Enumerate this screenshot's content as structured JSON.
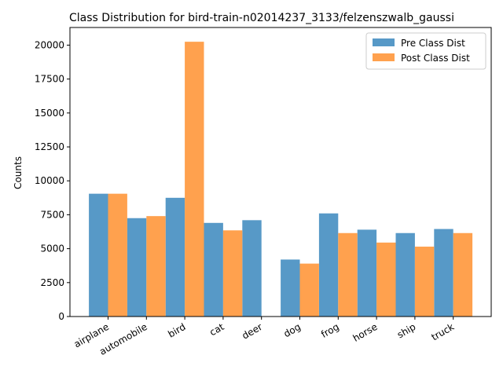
{
  "chart_data": {
    "type": "bar",
    "title": "Class Distribution for bird-train-n02014237_3133/felzenszwalb_gaussi",
    "xlabel": "",
    "ylabel": "Counts",
    "ylim": [
      0,
      21300
    ],
    "yticks": [
      0,
      2500,
      5000,
      7500,
      10000,
      12500,
      15000,
      17500,
      20000
    ],
    "categories": [
      "airplane",
      "automobile",
      "bird",
      "cat",
      "deer",
      "dog",
      "frog",
      "horse",
      "ship",
      "truck"
    ],
    "series": [
      {
        "name": "Pre Class Dist",
        "color": "#5799c7",
        "values": [
          9050,
          7250,
          8750,
          6900,
          7100,
          4200,
          7600,
          6400,
          6150,
          6450
        ]
      },
      {
        "name": "Post Class Dist",
        "color": "#ffa14e",
        "values": [
          9050,
          7400,
          20250,
          6350,
          0,
          3900,
          6150,
          5450,
          5150,
          6150
        ]
      }
    ],
    "legend_position": "top-right",
    "grid": false
  }
}
